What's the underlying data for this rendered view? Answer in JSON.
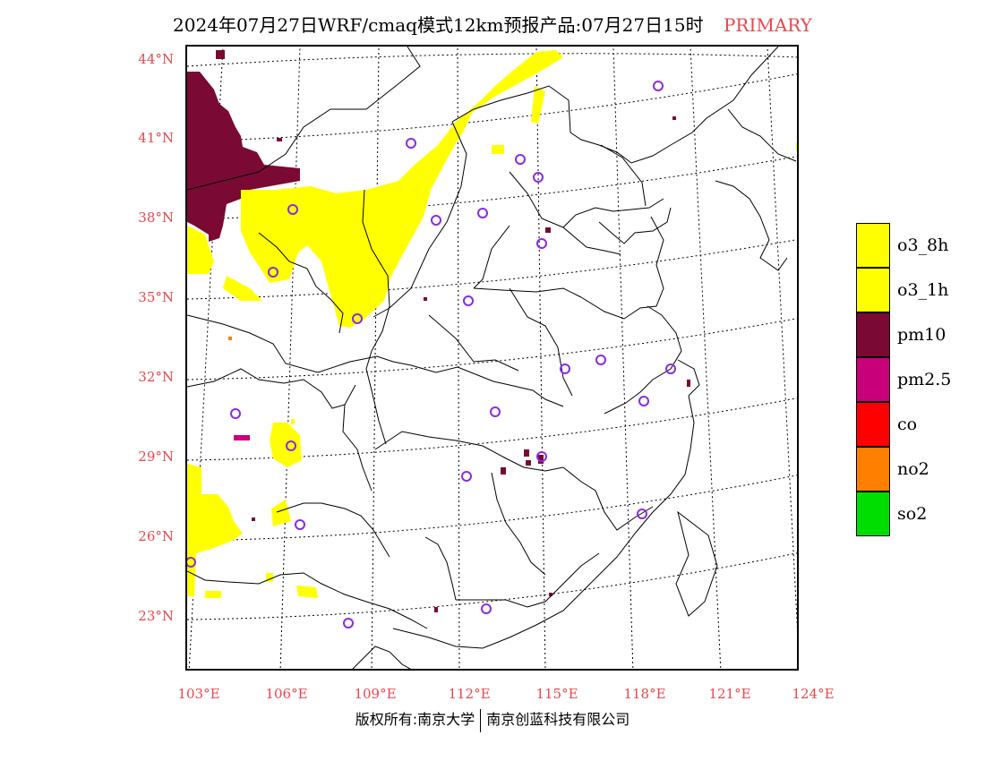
{
  "header": {
    "title": "2024年07月27日WRF/cmaq模式12km预报产品:07月27日15时",
    "product": "PRIMARY"
  },
  "axes": {
    "lat_labels": [
      "44°N",
      "41°N",
      "38°N",
      "35°N",
      "32°N",
      "29°N",
      "26°N",
      "23°N"
    ],
    "lon_labels": [
      "103°E",
      "106°E",
      "109°E",
      "112°E",
      "115°E",
      "118°E",
      "121°E",
      "124°E"
    ]
  },
  "legend": {
    "items": [
      {
        "label": "o3_8h",
        "color": "#ffff00"
      },
      {
        "label": "o3_1h",
        "color": "#ffff00"
      },
      {
        "label": "pm10",
        "color": "#7a0a33"
      },
      {
        "label": "pm2.5",
        "color": "#c8007a"
      },
      {
        "label": "co",
        "color": "#ff0000"
      },
      {
        "label": "no2",
        "color": "#ff7f00"
      },
      {
        "label": "so2",
        "color": "#00dd00"
      }
    ]
  },
  "footer": {
    "left": "版权所有:南京大学",
    "right": "南京创蓝科技有限公司"
  },
  "colors": {
    "label_red": "#e8474c",
    "o3": "#ffff00",
    "pm10": "#7a0a33",
    "pm25": "#c8007a",
    "no2": "#ff7f00",
    "station_ring": "#8a2be2"
  }
}
